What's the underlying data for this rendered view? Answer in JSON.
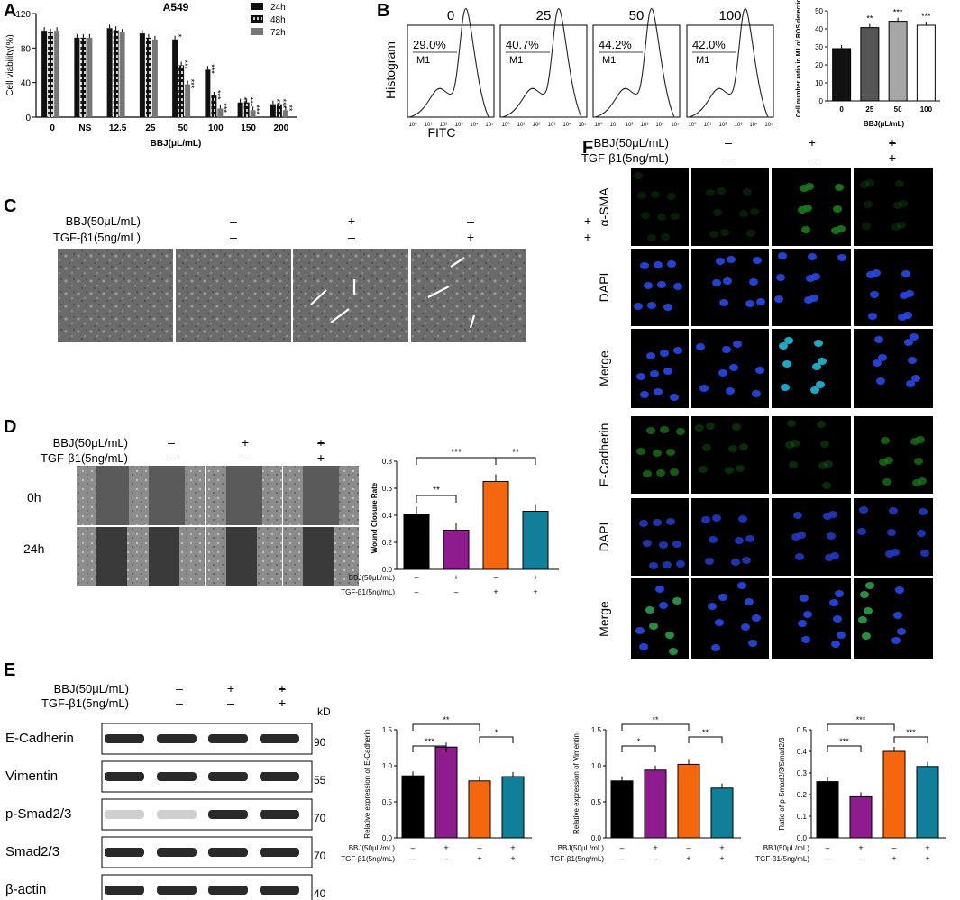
{
  "panel_letters": [
    "A",
    "B",
    "C",
    "D",
    "E",
    "F"
  ],
  "treatment_rows": {
    "bbj": "BBJ(50μL/mL)",
    "tgf": "TGF-β1(5ng/mL)",
    "bbj_signs": [
      "–",
      "+",
      "–",
      "+"
    ],
    "tgf_signs": [
      "–",
      "–",
      "+",
      "+"
    ]
  },
  "colors": {
    "black": "#000000",
    "purple": "#8e1c8e",
    "orange": "#f5670f",
    "teal": "#117f9a",
    "gray_dark": "#555555",
    "gray_mid": "#a6a6a6"
  },
  "panel_a": {
    "chart_data": {
      "type": "bar",
      "title": "A549",
      "ylabel": "Cell viability(%)",
      "xlabel": "BBJ(μL/mL)",
      "categories": [
        "0",
        "NS",
        "12.5",
        "25",
        "50",
        "100",
        "150",
        "200"
      ],
      "ylim": [
        0,
        120
      ],
      "yticks": [
        0,
        40,
        80,
        120
      ],
      "legend_position": "top-right",
      "series": [
        {
          "name": "24h",
          "color": "#111111",
          "values": [
            100,
            92,
            103,
            97,
            90,
            55,
            17,
            15
          ],
          "stars": [
            "",
            "",
            "",
            "",
            "*",
            "***",
            "***",
            "***"
          ]
        },
        {
          "name": "48h",
          "color": "#111111",
          "pattern": "white-dashed",
          "values": [
            98,
            92,
            101,
            92,
            60,
            25,
            17,
            15
          ],
          "stars": [
            "",
            "",
            "",
            "",
            "***",
            "***",
            "***",
            "***"
          ]
        },
        {
          "name": "72h",
          "color": "#777777",
          "values": [
            100,
            92,
            98,
            90,
            38,
            10,
            8,
            8
          ],
          "stars": [
            "",
            "",
            "",
            "",
            "***",
            "***",
            "***",
            "**"
          ]
        }
      ]
    }
  },
  "panel_b": {
    "histogram_titles": [
      "0",
      "25",
      "50",
      "100"
    ],
    "percentages": [
      "29.0%",
      "40.7%",
      "44.2%",
      "42.0%"
    ],
    "gate_label": "M1",
    "ylabel": "Histogram",
    "xlabel": "FITC",
    "xtick_labels": [
      "10⁰",
      "10¹",
      "10²",
      "10³",
      "10⁴",
      "10⁵"
    ],
    "chart_data": {
      "type": "bar",
      "categories": [
        "0",
        "25",
        "50",
        "100"
      ],
      "values": [
        29,
        40.7,
        44.2,
        42.0
      ],
      "ylim": [
        0,
        50
      ],
      "yticks": [
        0,
        10,
        20,
        30,
        40,
        50
      ],
      "ylabel": "Cell number ratio in M1 of ROS detection",
      "xlabel": "BBJ(μL/mL)",
      "colors": [
        "#111111",
        "#555555",
        "#a6a6a6",
        "#ffffff"
      ],
      "stars": [
        "",
        "**",
        "***",
        "***"
      ]
    }
  },
  "panel_d": {
    "time_labels": [
      "0h",
      "24h"
    ],
    "chart_data": {
      "type": "bar",
      "ylabel": "Wound Closure Rate",
      "ylim": [
        0,
        0.8
      ],
      "yticks": [
        "0.0",
        "0.2",
        "0.4",
        "0.6",
        "0.8"
      ],
      "values": [
        0.41,
        0.29,
        0.65,
        0.43
      ],
      "colors": [
        "#000000",
        "#8e1c8e",
        "#f5670f",
        "#117f9a"
      ],
      "brackets": [
        {
          "from": 0,
          "to": 2,
          "label": "***"
        },
        {
          "from": 0,
          "to": 1,
          "label": "**"
        },
        {
          "from": 2,
          "to": 3,
          "label": "**"
        }
      ]
    }
  },
  "panel_e": {
    "kd_label": "kD",
    "blots": [
      {
        "name": "E-Cadherin",
        "marker": "90"
      },
      {
        "name": "Vimentin",
        "marker": "55"
      },
      {
        "name": "p-Smad2/3",
        "marker": "70"
      },
      {
        "name": "Smad2/3",
        "marker": "70"
      },
      {
        "name": "β-actin",
        "marker": "40"
      }
    ],
    "charts": [
      {
        "type": "bar",
        "ylabel": "Relative expression of E-Cadherin",
        "ylim": [
          0,
          1.5
        ],
        "yticks": [
          "0.0",
          "0.5",
          "1.0",
          "1.5"
        ],
        "values": [
          0.86,
          1.26,
          0.79,
          0.85
        ],
        "colors": [
          "#000000",
          "#8e1c8e",
          "#f5670f",
          "#117f9a"
        ],
        "brackets": [
          {
            "from": 0,
            "to": 2,
            "label": "**"
          },
          {
            "from": 0,
            "to": 1,
            "label": "***"
          },
          {
            "from": 2,
            "to": 3,
            "label": "*"
          }
        ]
      },
      {
        "type": "bar",
        "ylabel": "Relative expression of Vimentin",
        "ylim": [
          0,
          1.5
        ],
        "yticks": [
          "0.0",
          "0.5",
          "1.0",
          "1.5"
        ],
        "values": [
          0.79,
          0.94,
          1.02,
          0.69
        ],
        "colors": [
          "#000000",
          "#8e1c8e",
          "#f5670f",
          "#117f9a"
        ],
        "brackets": [
          {
            "from": 0,
            "to": 2,
            "label": "**"
          },
          {
            "from": 0,
            "to": 1,
            "label": "*"
          },
          {
            "from": 2,
            "to": 3,
            "label": "**"
          }
        ]
      },
      {
        "type": "bar",
        "ylabel": "Ratio of p-Smad2/3/Smad2/3",
        "ylim": [
          0,
          0.5
        ],
        "yticks": [
          "0.0",
          "0.1",
          "0.2",
          "0.3",
          "0.4",
          "0.5"
        ],
        "values": [
          0.26,
          0.19,
          0.4,
          0.33
        ],
        "colors": [
          "#000000",
          "#8e1c8e",
          "#f5670f",
          "#117f9a"
        ],
        "brackets": [
          {
            "from": 0,
            "to": 2,
            "label": "***"
          },
          {
            "from": 0,
            "to": 1,
            "label": "***"
          },
          {
            "from": 2,
            "to": 3,
            "label": "***"
          }
        ]
      }
    ]
  },
  "panel_f": {
    "rows": [
      "α-SMA",
      "DAPI",
      "Merge",
      "E-Cadherin",
      "DAPI",
      "Merge"
    ]
  }
}
